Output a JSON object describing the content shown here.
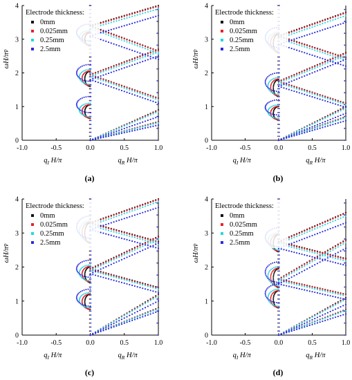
{
  "series_colors": {
    "0mm": "#111111",
    "0.025mm": "#e8202a",
    "0.25mm": "#22d8e0",
    "2.5mm": "#2a2ae0"
  },
  "chart_data": [
    {
      "type": "scatter",
      "panel": "(a)",
      "caption": "(a)",
      "ylabel": "ωH/πv̄",
      "xlabel_left": "q_I H/π",
      "xlabel_right": "q_R H/π",
      "xlim": [
        -1.0,
        1.0
      ],
      "ylim": [
        0,
        4
      ],
      "x_ticks": [
        "-1.0",
        "-0.5",
        "0.0",
        "0.5",
        "1.0"
      ],
      "y_ticks": [
        "0",
        "1",
        "2",
        "3",
        "4"
      ],
      "grid": false,
      "legend": {
        "placement": "top-left",
        "title": "Electrode thickness:",
        "entries": [
          "0mm",
          "0.025mm",
          "0.25mm",
          "2.5mm"
        ]
      },
      "series": [
        {
          "name": "0mm",
          "left_loops": [
            [
              0.65,
              1.05
            ],
            [
              1.6,
              2.05
            ],
            [
              2.8,
              3.2
            ]
          ],
          "right_bands": [
            [
              0.0,
              0.9
            ],
            [
              0.0,
              0.55
            ],
            [
              1.95,
              2.7
            ],
            [
              1.95,
              1.25
            ],
            [
              3.4,
              2.65
            ],
            [
              3.4,
              4.0
            ]
          ]
        },
        {
          "name": "0.025mm",
          "left_loops": [
            [
              0.66,
              1.06
            ],
            [
              1.62,
              2.06
            ],
            [
              2.82,
              3.22
            ]
          ],
          "right_bands": [
            [
              0.0,
              0.88
            ],
            [
              0.0,
              0.54
            ],
            [
              1.94,
              2.68
            ],
            [
              1.94,
              1.24
            ],
            [
              3.38,
              2.64
            ],
            [
              3.38,
              3.98
            ]
          ]
        },
        {
          "name": "0.25mm",
          "left_loops": [
            [
              0.7,
              1.1
            ],
            [
              1.66,
              2.1
            ],
            [
              2.86,
              3.26
            ]
          ],
          "right_bands": [
            [
              0.0,
              0.85
            ],
            [
              0.0,
              0.52
            ],
            [
              1.9,
              2.62
            ],
            [
              1.9,
              1.2
            ],
            [
              3.32,
              2.58
            ],
            [
              3.32,
              3.9
            ]
          ]
        },
        {
          "name": "2.5mm",
          "left_loops": [
            [
              0.82,
              1.3
            ],
            [
              1.75,
              2.25
            ],
            [
              2.95,
              3.45
            ]
          ],
          "right_bands": [
            [
              0.0,
              0.7
            ],
            [
              0.0,
              0.45
            ],
            [
              1.8,
              2.5
            ],
            [
              1.8,
              1.1
            ],
            [
              3.1,
              2.4
            ],
            [
              3.1,
              3.7
            ]
          ]
        }
      ]
    },
    {
      "type": "scatter",
      "panel": "(b)",
      "caption": "(b)",
      "ylabel": "ωH/πv̄",
      "xlabel_left": "q_I H/π",
      "xlabel_right": "q_R H/π",
      "xlim": [
        -1.0,
        1.0
      ],
      "ylim": [
        0,
        4
      ],
      "x_ticks": [
        "-1.0",
        "-0.5",
        "0.0",
        "0.5",
        "1.0"
      ],
      "y_ticks": [
        "0",
        "1",
        "2",
        "3",
        "4"
      ],
      "grid": false,
      "legend": {
        "placement": "top-left",
        "title": "Electrode thickness:",
        "entries": [
          "0mm",
          "0.025mm",
          "0.25mm",
          "2.5mm"
        ]
      },
      "series": [
        {
          "name": "0mm",
          "left_loops": [
            [
              0.6,
              1.0
            ],
            [
              1.3,
              1.8
            ],
            [
              2.6,
              3.15
            ]
          ],
          "right_bands": [
            [
              0.0,
              1.0
            ],
            [
              0.0,
              0.7
            ],
            [
              1.75,
              2.6
            ],
            [
              1.75,
              1.1
            ],
            [
              3.1,
              2.45
            ],
            [
              3.1,
              3.8
            ]
          ]
        },
        {
          "name": "0.025mm",
          "left_loops": [
            [
              0.61,
              1.01
            ],
            [
              1.32,
              1.82
            ],
            [
              2.62,
              3.17
            ]
          ],
          "right_bands": [
            [
              0.0,
              0.98
            ],
            [
              0.0,
              0.69
            ],
            [
              1.74,
              2.58
            ],
            [
              1.74,
              1.09
            ],
            [
              3.08,
              2.44
            ],
            [
              3.08,
              3.78
            ]
          ]
        },
        {
          "name": "0.25mm",
          "left_loops": [
            [
              0.65,
              1.05
            ],
            [
              1.36,
              1.86
            ],
            [
              2.66,
              3.21
            ]
          ],
          "right_bands": [
            [
              0.0,
              0.95
            ],
            [
              0.0,
              0.67
            ],
            [
              1.7,
              2.52
            ],
            [
              1.7,
              1.06
            ],
            [
              3.02,
              2.38
            ],
            [
              3.02,
              3.7
            ]
          ]
        },
        {
          "name": "2.5mm",
          "left_loops": [
            [
              0.75,
              1.2
            ],
            [
              1.45,
              2.0
            ],
            [
              2.75,
              3.35
            ]
          ],
          "right_bands": [
            [
              0.0,
              0.8
            ],
            [
              0.0,
              0.58
            ],
            [
              1.6,
              2.4
            ],
            [
              1.6,
              0.98
            ],
            [
              2.85,
              2.2
            ],
            [
              2.85,
              3.5
            ]
          ]
        }
      ]
    },
    {
      "type": "scatter",
      "panel": "(c)",
      "caption": "(c)",
      "ylabel": "ωH/πv̄",
      "xlabel_left": "q_I H/π",
      "xlabel_right": "q_R H/π",
      "xlim": [
        -1.0,
        1.0
      ],
      "ylim": [
        0,
        4
      ],
      "x_ticks": [
        "-1.0",
        "-0.5",
        "0.0",
        "0.5",
        "1.0"
      ],
      "y_ticks": [
        "0",
        "1",
        "2",
        "3",
        "4"
      ],
      "grid": false,
      "legend": {
        "placement": "top-left",
        "title": "Electrode thickness:",
        "entries": [
          "0mm",
          "0.025mm",
          "0.25mm",
          "2.5mm"
        ]
      },
      "series": [
        {
          "name": "0mm",
          "left_loops": [
            [
              0.75,
              1.2
            ],
            [
              1.55,
              2.0
            ],
            [
              2.7,
              3.3
            ]
          ],
          "right_bands": [
            [
              0.0,
              1.2
            ],
            [
              0.0,
              0.8
            ],
            [
              1.95,
              2.9
            ],
            [
              1.95,
              1.4
            ],
            [
              3.3,
              2.75
            ],
            [
              3.3,
              4.0
            ]
          ]
        },
        {
          "name": "0.025mm",
          "left_loops": [
            [
              0.76,
              1.21
            ],
            [
              1.57,
              2.02
            ],
            [
              2.72,
              3.32
            ]
          ],
          "right_bands": [
            [
              0.0,
              1.18
            ],
            [
              0.0,
              0.79
            ],
            [
              1.93,
              2.88
            ],
            [
              1.93,
              1.38
            ],
            [
              3.28,
              2.73
            ],
            [
              3.28,
              3.98
            ]
          ]
        },
        {
          "name": "0.25mm",
          "left_loops": [
            [
              0.8,
              1.25
            ],
            [
              1.6,
              2.06
            ],
            [
              2.76,
              3.36
            ]
          ],
          "right_bands": [
            [
              0.0,
              1.15
            ],
            [
              0.0,
              0.77
            ],
            [
              1.9,
              2.82
            ],
            [
              1.9,
              1.35
            ],
            [
              3.22,
              2.68
            ],
            [
              3.22,
              3.92
            ]
          ]
        },
        {
          "name": "2.5mm",
          "left_loops": [
            [
              0.85,
              1.35
            ],
            [
              1.7,
              2.2
            ],
            [
              2.85,
              3.5
            ]
          ],
          "right_bands": [
            [
              0.0,
              1.0
            ],
            [
              0.0,
              0.7
            ],
            [
              1.8,
              2.7
            ],
            [
              1.8,
              1.25
            ],
            [
              3.1,
              2.55
            ],
            [
              3.1,
              3.75
            ]
          ]
        }
      ]
    },
    {
      "type": "scatter",
      "panel": "(d)",
      "caption": "(d)",
      "ylabel": "ωH/πv̄",
      "xlabel_left": "q_I H/π",
      "xlabel_right": "q_R H/π",
      "xlim": [
        -1.0,
        1.0
      ],
      "ylim": [
        0,
        4
      ],
      "x_ticks": [
        "-1.0",
        "-0.5",
        "0.0",
        "0.5",
        "1.0"
      ],
      "y_ticks": [
        "0",
        "1",
        "2",
        "3",
        "4"
      ],
      "grid": false,
      "legend": {
        "placement": "top-left",
        "title": "Electrode thickness:",
        "entries": [
          "0mm",
          "0.025mm",
          "0.25mm",
          "2.5mm"
        ]
      },
      "series": [
        {
          "name": "0mm",
          "left_loops": [
            [
              0.8,
              1.3
            ],
            [
              1.4,
              1.95
            ],
            [
              2.45,
              2.95
            ]
          ],
          "right_bands": [
            [
              0.0,
              1.1
            ],
            [
              0.0,
              0.75
            ],
            [
              1.65,
              2.8
            ],
            [
              1.65,
              1.2
            ],
            [
              2.75,
              2.25
            ],
            [
              2.75,
              3.6
            ]
          ]
        },
        {
          "name": "0.025mm",
          "left_loops": [
            [
              0.81,
              1.31
            ],
            [
              1.42,
              1.97
            ],
            [
              2.47,
              2.97
            ]
          ],
          "right_bands": [
            [
              0.0,
              1.08
            ],
            [
              0.0,
              0.74
            ],
            [
              1.64,
              2.78
            ],
            [
              1.64,
              1.19
            ],
            [
              2.73,
              2.23
            ],
            [
              2.73,
              3.58
            ]
          ]
        },
        {
          "name": "0.25mm",
          "left_loops": [
            [
              0.85,
              1.35
            ],
            [
              1.46,
              2.01
            ],
            [
              2.51,
              3.01
            ]
          ],
          "right_bands": [
            [
              0.0,
              1.05
            ],
            [
              0.0,
              0.72
            ],
            [
              1.6,
              2.72
            ],
            [
              1.6,
              1.15
            ],
            [
              2.68,
              2.18
            ],
            [
              2.68,
              3.5
            ]
          ]
        },
        {
          "name": "2.5mm",
          "left_loops": [
            [
              0.95,
              1.5
            ],
            [
              1.55,
              2.15
            ],
            [
              2.6,
              3.15
            ]
          ],
          "right_bands": [
            [
              0.0,
              0.9
            ],
            [
              0.0,
              0.62
            ],
            [
              1.5,
              2.55
            ],
            [
              1.5,
              1.05
            ],
            [
              2.55,
              2.05
            ],
            [
              2.55,
              3.3
            ]
          ]
        }
      ]
    }
  ]
}
